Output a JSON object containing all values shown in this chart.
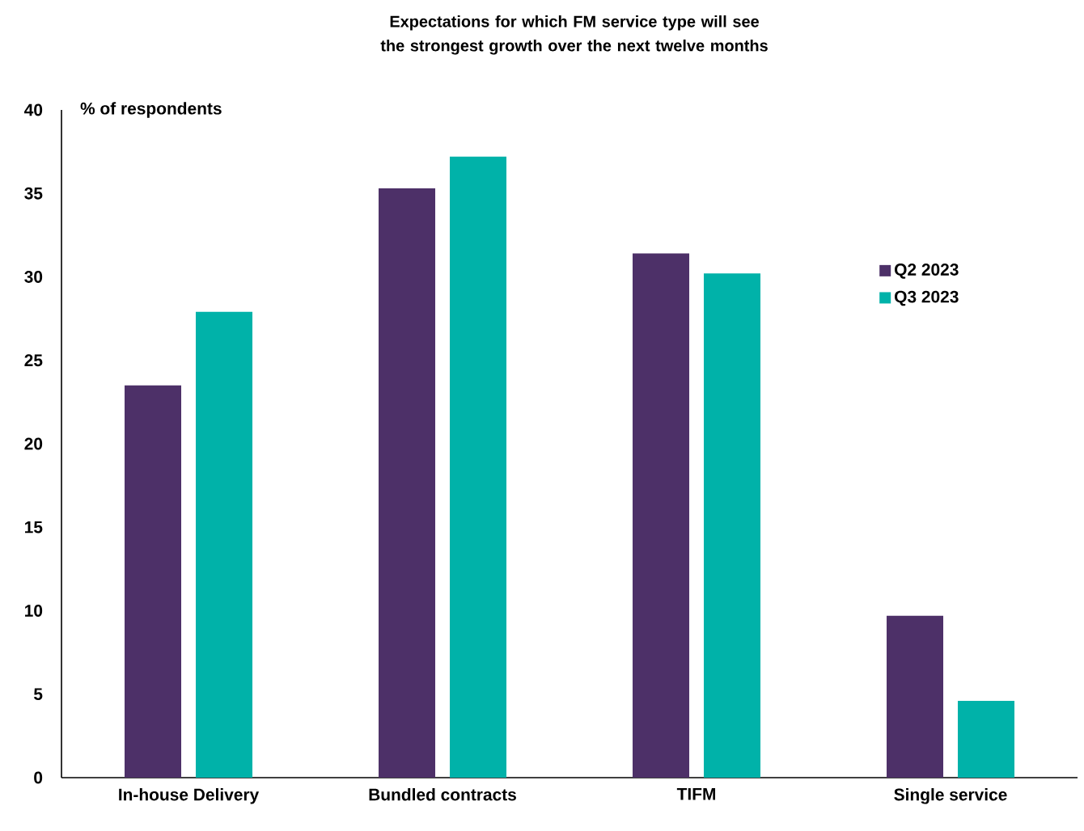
{
  "chart_data": {
    "type": "bar",
    "title": "Expectations for which FM service type will see the strongest growth over the next twelve months",
    "ylabel": "% of respondents",
    "categories": [
      "In-house Delivery",
      "Bundled contracts",
      "TIFM",
      "Single service"
    ],
    "series": [
      {
        "name": "Q2 2023",
        "color": "#4d3068",
        "values": [
          23.5,
          35.3,
          31.4,
          9.7
        ]
      },
      {
        "name": "Q3 2023",
        "color": "#00b2a9",
        "values": [
          27.9,
          37.2,
          30.2,
          4.6
        ]
      }
    ],
    "ylim": [
      0,
      40
    ],
    "yticks": [
      0,
      5,
      10,
      15,
      20,
      25,
      30,
      35,
      40
    ],
    "legend": "right",
    "grid": false
  }
}
